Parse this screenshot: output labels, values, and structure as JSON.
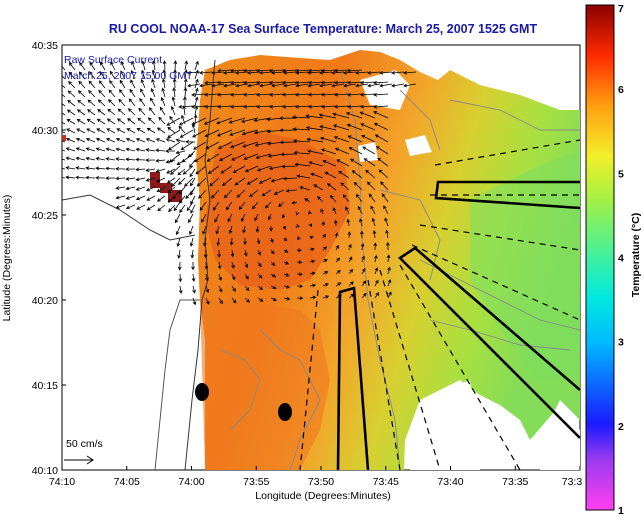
{
  "chart_data": {
    "type": "heatmap",
    "title": "RU COOL  NOAA-17  Sea Surface Temperature:  March 25, 2007 1525 GMT",
    "xlabel": "Longitude (Degrees:Minutes)",
    "ylabel": "Latitude (Degrees:Minutes)",
    "x_ticks": [
      "74:10",
      "74:05",
      "74:00",
      "73:55",
      "73:50",
      "73:45",
      "73:40",
      "73:35",
      "73:3"
    ],
    "y_ticks": [
      "40:35",
      "40:30",
      "40:25",
      "40:20",
      "40:15",
      "40:10"
    ],
    "xlim": [
      -74.1667,
      -73.5
    ],
    "ylim": [
      40.1667,
      40.5833
    ],
    "colorbar": {
      "label": "Temperature (°C)",
      "range": [
        1,
        7
      ],
      "ticks": [
        "7",
        "6",
        "5",
        "4",
        "3",
        "2",
        "1"
      ]
    },
    "annotations": {
      "current_label": "Raw Surface Current",
      "current_time": "March 25, 2007 15:00 GMT",
      "scale_label": "50 cm/s"
    },
    "colors": {
      "title": "#1a1aa8",
      "warm_core": "#e8601a",
      "nearshore": "#f3961e",
      "offshore": "#8ede4a"
    }
  }
}
